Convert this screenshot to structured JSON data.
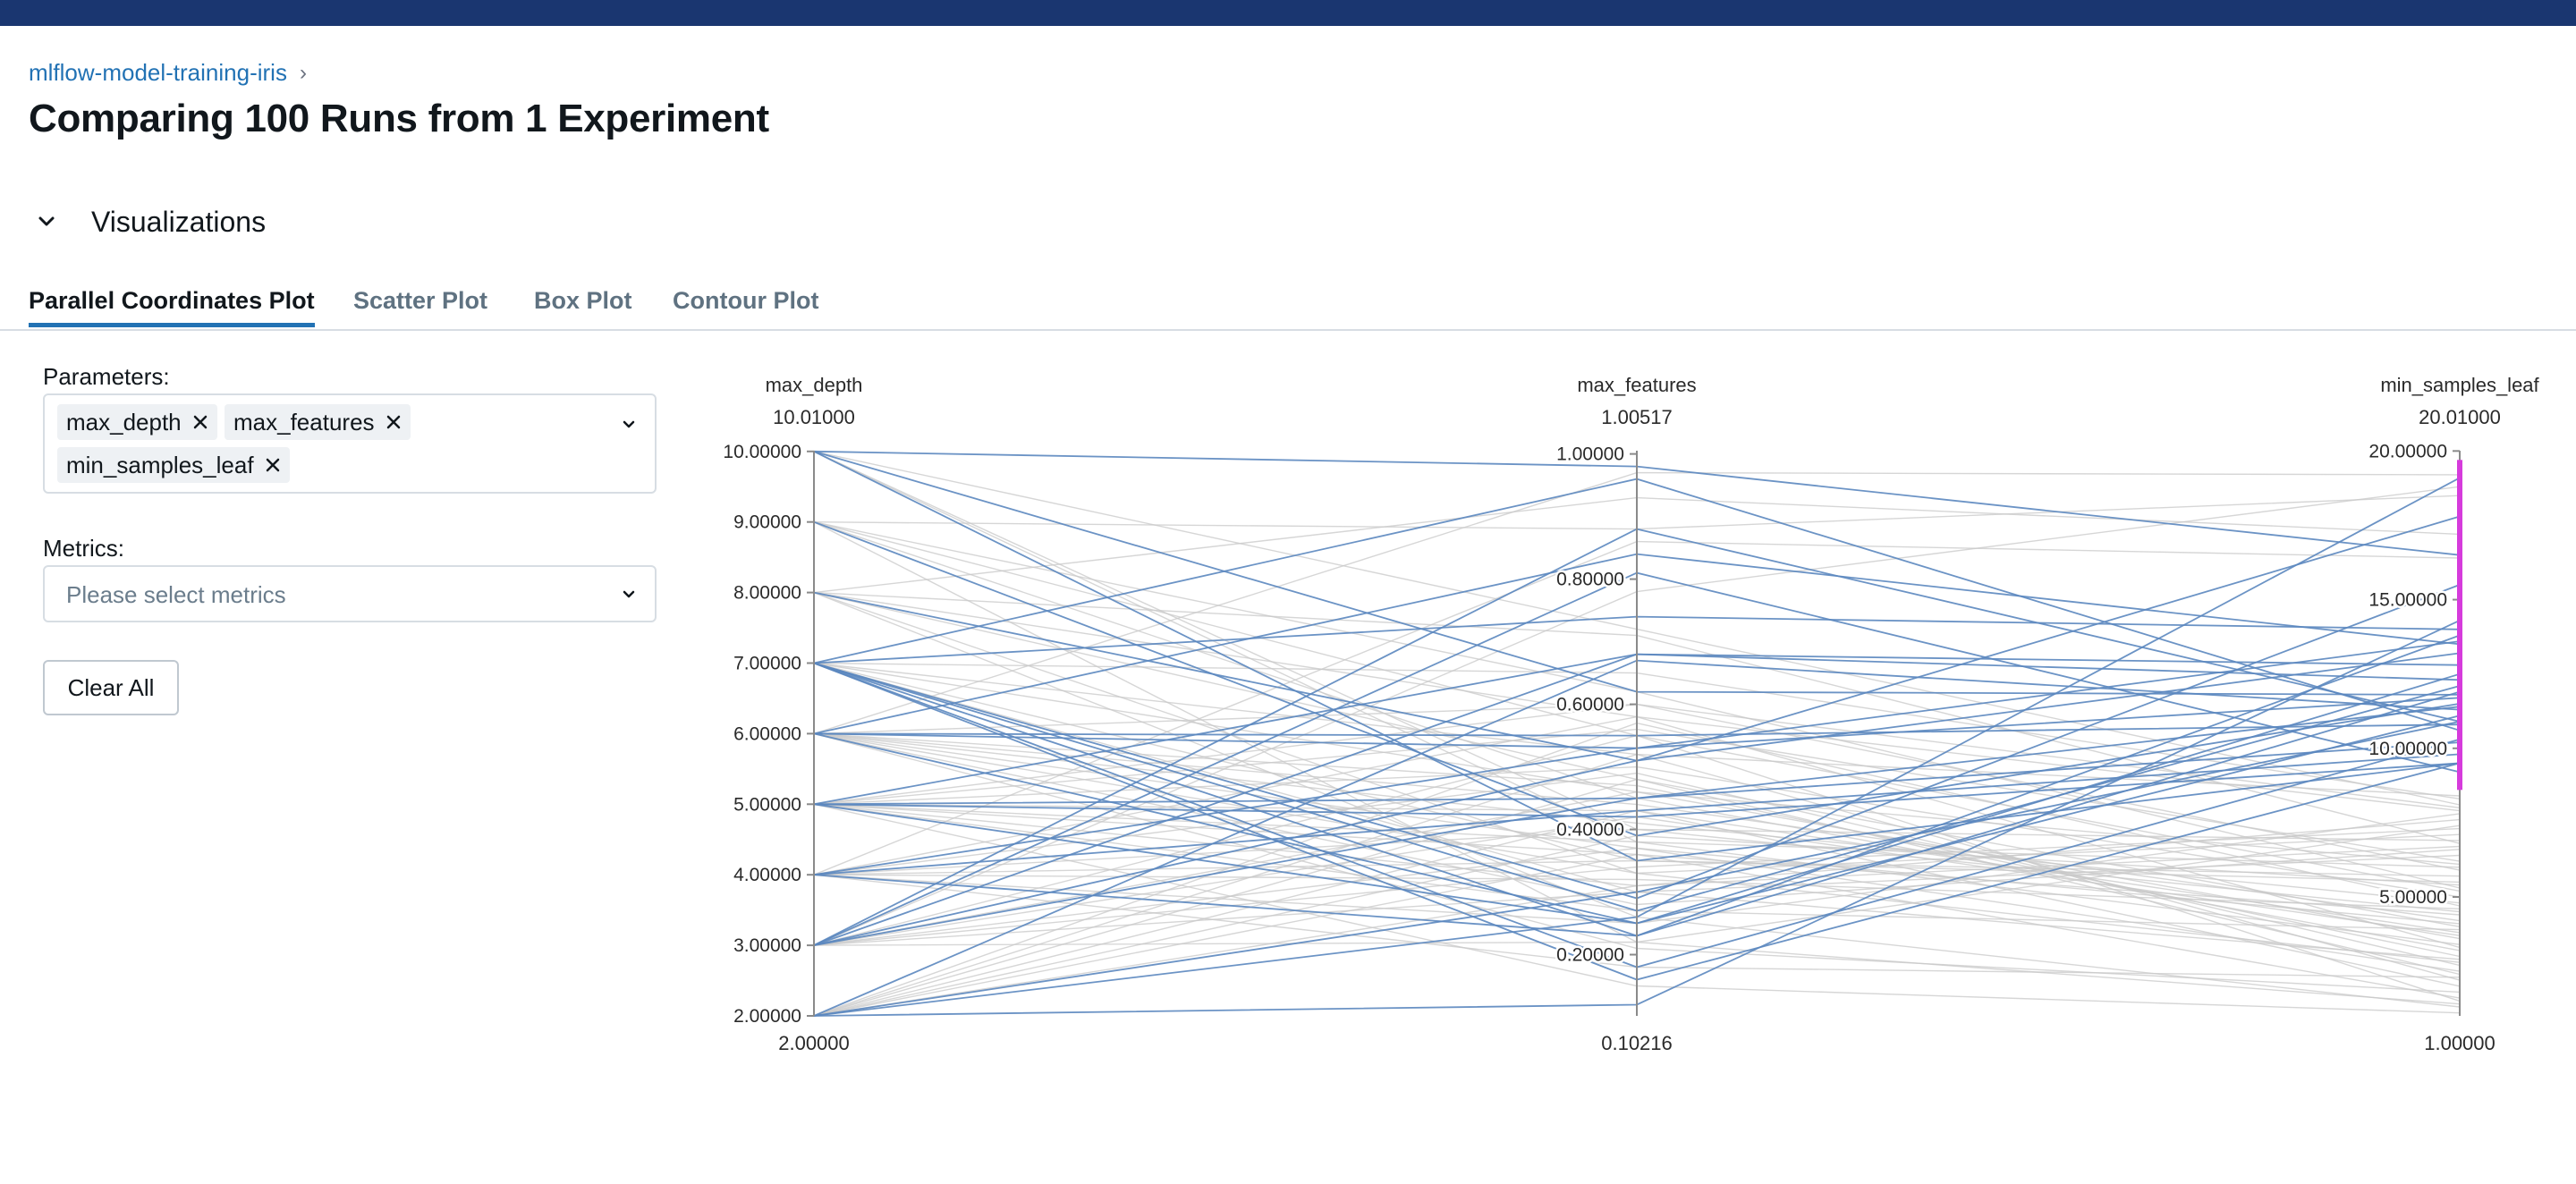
{
  "breadcrumb": {
    "experiment": "mlflow-model-training-iris",
    "separator": "›"
  },
  "page": {
    "title": "Comparing 100 Runs from 1 Experiment"
  },
  "section": {
    "title": "Visualizations"
  },
  "tabs": [
    {
      "label": "Parallel Coordinates Plot",
      "active": true
    },
    {
      "label": "Scatter Plot",
      "active": false
    },
    {
      "label": "Box Plot",
      "active": false
    },
    {
      "label": "Contour Plot",
      "active": false
    }
  ],
  "controls": {
    "parameters_label": "Parameters:",
    "parameters_selected": [
      "max_depth",
      "max_features",
      "min_samples_leaf"
    ],
    "metrics_label": "Metrics:",
    "metrics_placeholder": "Please select metrics",
    "clear_all": "Clear All"
  },
  "icons": {
    "breadcrumb_separator": "chevron-right-icon",
    "section_toggle": "chevron-down-icon",
    "chip_remove": "close-icon",
    "dropdown": "chevron-down-icon"
  },
  "colors": {
    "topbar": "#1a3670",
    "link": "#2272b4",
    "highlight_line": "#5b87bf",
    "faded_line": "#c8c8c8",
    "brush": "#d63bdc"
  },
  "chart_data": {
    "type": "parallel_coordinates",
    "axes": [
      {
        "name": "max_depth",
        "top_label": "10.01000",
        "bottom_label": "2.00000",
        "range": [
          2.0,
          10.01
        ],
        "ticks": [
          "2.00000",
          "3.00000",
          "4.00000",
          "5.00000",
          "6.00000",
          "7.00000",
          "8.00000",
          "9.00000",
          "10.00000"
        ],
        "tick_values": [
          2,
          3,
          4,
          5,
          6,
          7,
          8,
          9,
          10
        ]
      },
      {
        "name": "max_features",
        "top_label": "1.00517",
        "bottom_label": "0.10216",
        "range": [
          0.10216,
          1.00517
        ],
        "ticks": [
          "0.20000",
          "0.40000",
          "0.60000",
          "0.80000",
          "1.00000"
        ],
        "tick_values": [
          0.2,
          0.4,
          0.6,
          0.8,
          1.0
        ]
      },
      {
        "name": "min_samples_leaf",
        "top_label": "20.01000",
        "bottom_label": "1.00000",
        "range": [
          1.0,
          20.01
        ],
        "ticks": [
          "5.00000",
          "10.00000",
          "15.00000",
          "20.00000"
        ],
        "tick_values": [
          5,
          10,
          15,
          20
        ]
      }
    ],
    "brush_range": {
      "axis": "min_samples_leaf",
      "range": [
        8.6,
        19.7
      ]
    },
    "highlighted_runs": [
      [
        10,
        0.98,
        16.5
      ],
      [
        10,
        0.62,
        11.8
      ],
      [
        10,
        0.35,
        9.5
      ],
      [
        9,
        0.39,
        11.5
      ],
      [
        8,
        0.51,
        13.2
      ],
      [
        7,
        0.96,
        10.6
      ],
      [
        7,
        0.74,
        14.0
      ],
      [
        7,
        0.27,
        12.1
      ],
      [
        7,
        0.18,
        10.3
      ],
      [
        7,
        0.16,
        9.5
      ],
      [
        7,
        0.23,
        13.8
      ],
      [
        7,
        0.29,
        15.5
      ],
      [
        6,
        0.55,
        10.8
      ],
      [
        6,
        0.25,
        12.5
      ],
      [
        6,
        0.53,
        11.7
      ],
      [
        6,
        0.84,
        13.5
      ],
      [
        5,
        0.68,
        12.3
      ],
      [
        5,
        0.45,
        10.2
      ],
      [
        5,
        0.25,
        11.1
      ],
      [
        5,
        0.42,
        9.5
      ],
      [
        4,
        0.43,
        9.8
      ],
      [
        4,
        0.53,
        13.6
      ],
      [
        4,
        0.23,
        11.9
      ],
      [
        3,
        0.88,
        10.9
      ],
      [
        3,
        0.81,
        9.2
      ],
      [
        3,
        0.51,
        17.8
      ],
      [
        3,
        0.45,
        11.4
      ],
      [
        3,
        0.68,
        12.8
      ],
      [
        2,
        0.26,
        19.1
      ],
      [
        2,
        0.12,
        14.3
      ],
      [
        2,
        0.67,
        11.3
      ],
      [
        2,
        0.3,
        10.9
      ]
    ],
    "faded_runs": [
      [
        10,
        0.4,
        4.5
      ],
      [
        10,
        0.38,
        6.0
      ],
      [
        9,
        0.62,
        5.3
      ],
      [
        9,
        0.45,
        3.2
      ],
      [
        9,
        0.22,
        7.4
      ],
      [
        8,
        0.33,
        2.8
      ],
      [
        8,
        0.71,
        6.8
      ],
      [
        8,
        0.48,
        4.0
      ],
      [
        8,
        0.58,
        7.9
      ],
      [
        7,
        0.35,
        5.5
      ],
      [
        7,
        0.46,
        3.6
      ],
      [
        7,
        0.52,
        2.2
      ],
      [
        7,
        0.3,
        6.4
      ],
      [
        6,
        0.41,
        4.8
      ],
      [
        6,
        0.33,
        7.1
      ],
      [
        6,
        0.47,
        3.0
      ],
      [
        6,
        0.6,
        5.9
      ],
      [
        6,
        0.37,
        2.5
      ],
      [
        6,
        0.28,
        6.6
      ],
      [
        6,
        0.44,
        4.2
      ],
      [
        5,
        0.38,
        3.4
      ],
      [
        5,
        0.5,
        5.0
      ],
      [
        5,
        0.31,
        7.6
      ],
      [
        5,
        0.43,
        2.0
      ],
      [
        5,
        0.56,
        6.2
      ],
      [
        5,
        0.36,
        4.4
      ],
      [
        5,
        0.27,
        3.9
      ],
      [
        4,
        0.35,
        5.7
      ],
      [
        4,
        0.49,
        2.7
      ],
      [
        4,
        0.4,
        6.9
      ],
      [
        4,
        0.32,
        4.6
      ],
      [
        4,
        0.58,
        3.3
      ],
      [
        4,
        0.25,
        7.8
      ],
      [
        3,
        0.37,
        4.1
      ],
      [
        3,
        0.46,
        6.1
      ],
      [
        3,
        0.3,
        2.9
      ],
      [
        3,
        0.55,
        5.2
      ],
      [
        3,
        0.42,
        3.7
      ],
      [
        3,
        0.34,
        7.3
      ],
      [
        2,
        0.39,
        5.4
      ],
      [
        2,
        0.48,
        2.4
      ],
      [
        2,
        0.31,
        6.7
      ],
      [
        2,
        0.43,
        3.8
      ],
      [
        2,
        0.57,
        4.7
      ],
      [
        2,
        0.36,
        1.6
      ],
      [
        9,
        0.88,
        18.5
      ],
      [
        8,
        0.93,
        17.2
      ],
      [
        6,
        0.97,
        19.2
      ],
      [
        4,
        0.86,
        16.4
      ],
      [
        3,
        0.78,
        18.8
      ],
      [
        10,
        0.72,
        8.1
      ],
      [
        7,
        0.65,
        8.3
      ],
      [
        5,
        0.6,
        8.0
      ],
      [
        2,
        0.52,
        8.4
      ],
      [
        9,
        0.55,
        1.5
      ],
      [
        8,
        0.26,
        1.3
      ],
      [
        6,
        0.21,
        1.8
      ],
      [
        4,
        0.18,
        2.3
      ],
      [
        5,
        0.15,
        1.1
      ],
      [
        3,
        0.22,
        1.4
      ]
    ]
  }
}
